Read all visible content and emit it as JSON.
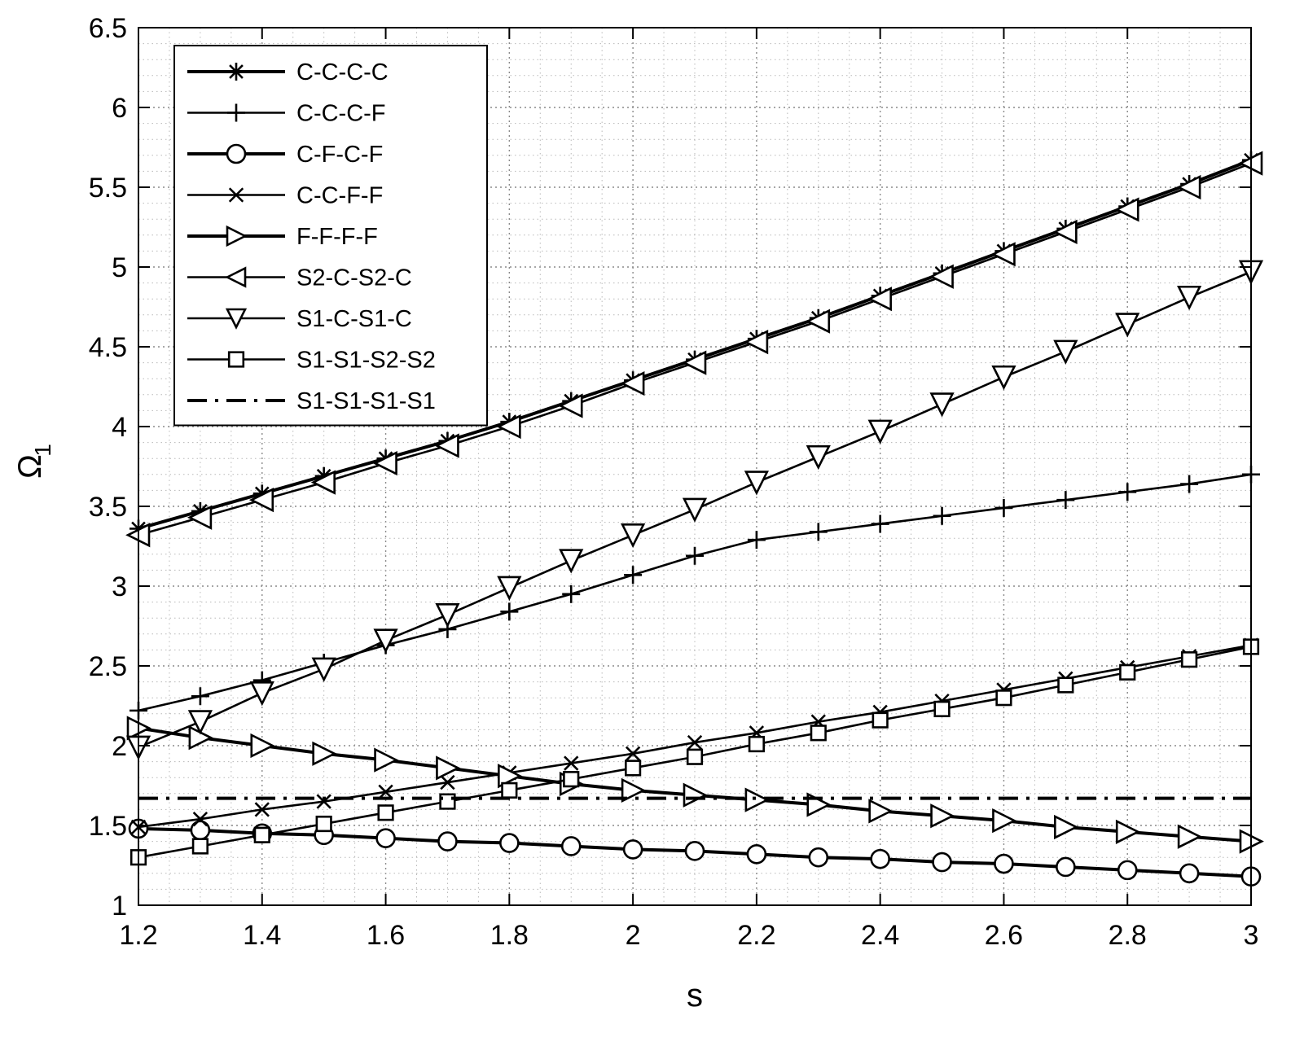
{
  "chart_data": {
    "type": "line",
    "title": "",
    "xlabel": "s",
    "ylabel": "Ω",
    "ylabel_subscript": "1",
    "xlim": [
      1.2,
      3
    ],
    "ylim": [
      1,
      6.5
    ],
    "xticks": [
      1.2,
      1.4,
      1.6,
      1.8,
      2,
      2.2,
      2.4,
      2.6,
      2.8,
      3
    ],
    "xtick_labels": [
      "1.2",
      "1.4",
      "1.6",
      "1.8",
      "2",
      "2.2",
      "2.4",
      "2.6",
      "2.8",
      "3"
    ],
    "yticks": [
      1,
      1.5,
      2,
      2.5,
      3,
      3.5,
      4,
      4.5,
      5,
      5.5,
      6,
      6.5
    ],
    "ytick_labels": [
      "1",
      "1.5",
      "2",
      "2.5",
      "3",
      "3.5",
      "4",
      "4.5",
      "5",
      "5.5",
      "6",
      "6.5"
    ],
    "grid": "major and minor, dotted",
    "legend_position": "top-left",
    "line_color": "#000000",
    "x": [
      1.2,
      1.3,
      1.4,
      1.5,
      1.6,
      1.7,
      1.8,
      1.9,
      2.0,
      2.1,
      2.2,
      2.3,
      2.4,
      2.5,
      2.6,
      2.7,
      2.8,
      2.9,
      3.0
    ],
    "series": [
      {
        "name": "C-C-C-C",
        "marker": "asterisk",
        "line": "solid",
        "width": "thick",
        "values": [
          3.36,
          3.47,
          3.58,
          3.69,
          3.8,
          3.91,
          4.03,
          4.16,
          4.29,
          4.42,
          4.55,
          4.68,
          4.82,
          4.96,
          5.1,
          5.24,
          5.38,
          5.52,
          5.67
        ]
      },
      {
        "name": "C-C-C-F",
        "marker": "plus",
        "line": "solid",
        "width": "normal",
        "values": [
          2.22,
          2.31,
          2.41,
          2.52,
          2.63,
          2.73,
          2.84,
          2.95,
          3.07,
          3.19,
          3.29,
          3.34,
          3.39,
          3.44,
          3.49,
          3.54,
          3.59,
          3.64,
          3.7
        ]
      },
      {
        "name": "C-F-C-F",
        "marker": "circle",
        "line": "solid",
        "width": "thick",
        "values": [
          1.48,
          1.47,
          1.45,
          1.44,
          1.42,
          1.4,
          1.39,
          1.37,
          1.35,
          1.34,
          1.32,
          1.3,
          1.29,
          1.27,
          1.26,
          1.24,
          1.22,
          1.2,
          1.18
        ]
      },
      {
        "name": "C-C-F-F",
        "marker": "x",
        "line": "solid",
        "width": "normal",
        "values": [
          1.49,
          1.54,
          1.6,
          1.65,
          1.71,
          1.77,
          1.83,
          1.89,
          1.95,
          2.02,
          2.08,
          2.15,
          2.21,
          2.28,
          2.35,
          2.42,
          2.49,
          2.56,
          2.63
        ]
      },
      {
        "name": "F-F-F-F",
        "marker": "triangle-right",
        "line": "solid",
        "width": "thick",
        "values": [
          2.11,
          2.05,
          2.0,
          1.95,
          1.91,
          1.86,
          1.81,
          1.76,
          1.72,
          1.69,
          1.66,
          1.63,
          1.59,
          1.56,
          1.53,
          1.49,
          1.46,
          1.43,
          1.4
        ]
      },
      {
        "name": "S2-C-S2-C",
        "marker": "triangle-left",
        "line": "solid",
        "width": "normal",
        "values": [
          3.32,
          3.43,
          3.54,
          3.65,
          3.77,
          3.88,
          4.0,
          4.13,
          4.27,
          4.4,
          4.53,
          4.66,
          4.8,
          4.94,
          5.08,
          5.22,
          5.36,
          5.5,
          5.65
        ]
      },
      {
        "name": "S1-C-S1-C",
        "marker": "triangle-down",
        "line": "solid",
        "width": "normal",
        "values": [
          1.99,
          2.15,
          2.33,
          2.48,
          2.66,
          2.82,
          2.99,
          3.16,
          3.32,
          3.48,
          3.65,
          3.81,
          3.97,
          4.14,
          4.31,
          4.47,
          4.64,
          4.81,
          4.97
        ]
      },
      {
        "name": "S1-S1-S2-S2",
        "marker": "square",
        "line": "solid",
        "width": "normal",
        "values": [
          1.3,
          1.37,
          1.44,
          1.51,
          1.58,
          1.65,
          1.72,
          1.79,
          1.86,
          1.93,
          2.01,
          2.08,
          2.16,
          2.23,
          2.3,
          2.38,
          2.46,
          2.54,
          2.62
        ]
      },
      {
        "name": "S1-S1-S1-S1",
        "marker": "none",
        "line": "dash-dot",
        "width": "thick",
        "values": [
          1.67,
          1.67,
          1.67,
          1.67,
          1.67,
          1.67,
          1.67,
          1.67,
          1.67,
          1.67,
          1.67,
          1.67,
          1.67,
          1.67,
          1.67,
          1.67,
          1.67,
          1.67,
          1.67
        ]
      }
    ]
  }
}
